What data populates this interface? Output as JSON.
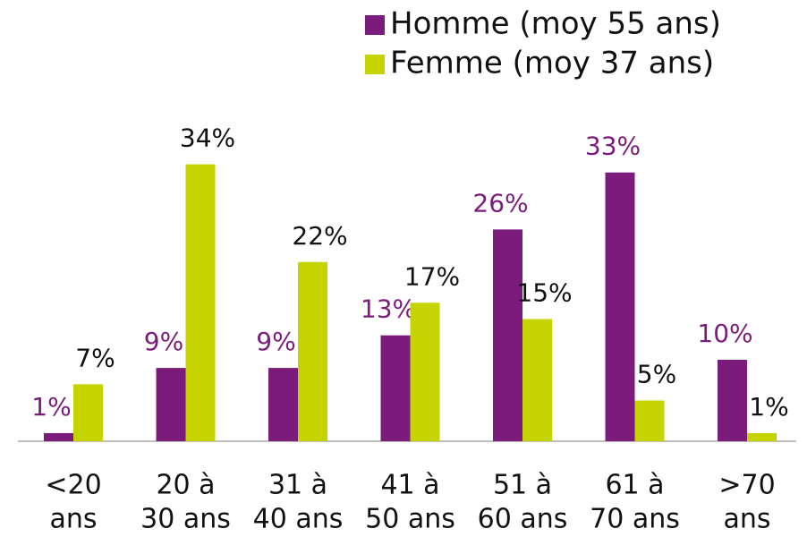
{
  "chart_data": {
    "type": "bar",
    "categories": [
      [
        "<20",
        "ans"
      ],
      [
        "20 à",
        "30 ans"
      ],
      [
        "31 à",
        "40 ans"
      ],
      [
        "41 à",
        "50 ans"
      ],
      [
        "51 à",
        "60 ans"
      ],
      [
        "61 à",
        "70 ans"
      ],
      [
        ">70",
        "ans"
      ]
    ],
    "series": [
      {
        "name": "Homme (moy 55 ans)",
        "color": "#7b1c7d",
        "label_color": "#7b1c7d",
        "values": [
          1,
          9,
          9,
          13,
          26,
          33,
          10
        ],
        "value_labels": [
          "1%",
          "9%",
          "9%",
          "13%",
          "26%",
          "33%",
          "10%"
        ]
      },
      {
        "name": "Femme (moy 37 ans)",
        "color": "#c5d400",
        "label_color": "#111111",
        "values": [
          7,
          34,
          22,
          17,
          15,
          5,
          1
        ],
        "value_labels": [
          "7%",
          "34%",
          "22%",
          "17%",
          "15%",
          "5%",
          "1%"
        ]
      }
    ],
    "legend": "top-right"
  }
}
